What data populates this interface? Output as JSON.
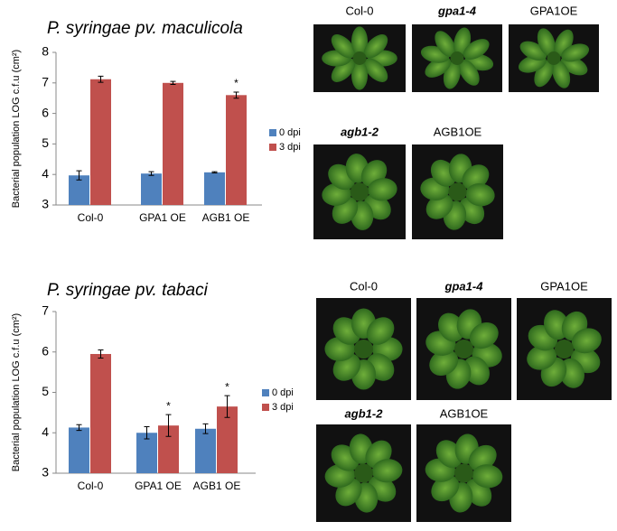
{
  "chart_data": [
    {
      "type": "bar",
      "title": "P. syringae pv. maculicola",
      "ylabel": "Bacterial population LOG c.f.u (cm²)",
      "categories": [
        "Col-0",
        "GPA1 OE",
        "AGB1 OE"
      ],
      "series": [
        {
          "name": "0 dpi",
          "color": "#4f81bd",
          "values": [
            3.97,
            4.03,
            4.07
          ],
          "errors": [
            0.15,
            0.06,
            0.02
          ]
        },
        {
          "name": "3 dpi",
          "color": "#c0504d",
          "values": [
            7.12,
            7.0,
            6.6
          ],
          "errors": [
            0.1,
            0.05,
            0.1
          ]
        }
      ],
      "annotations": [
        {
          "text": "*",
          "series": "3 dpi",
          "category": "AGB1 OE"
        }
      ],
      "ylim": [
        3,
        8
      ],
      "yticks": [
        3,
        4,
        5,
        6,
        7,
        8
      ],
      "grid": false
    },
    {
      "type": "bar",
      "title": "P. syringae pv. tabaci",
      "ylabel": "Bacterial population LOG c.f.u (cm²)",
      "categories": [
        "Col-0",
        "GPA1 OE",
        "AGB1 OE"
      ],
      "series": [
        {
          "name": "0 dpi",
          "color": "#4f81bd",
          "values": [
            4.13,
            4.0,
            4.1
          ],
          "errors": [
            0.07,
            0.15,
            0.12
          ]
        },
        {
          "name": "3 dpi",
          "color": "#c0504d",
          "values": [
            5.95,
            4.18,
            4.65
          ],
          "errors": [
            0.1,
            0.27,
            0.27
          ]
        }
      ],
      "annotations": [
        {
          "text": "*",
          "series": "3 dpi",
          "category": "GPA1 OE"
        },
        {
          "text": "*",
          "series": "3 dpi",
          "category": "AGB1 OE"
        }
      ],
      "ylim": [
        3,
        7
      ],
      "yticks": [
        3,
        4,
        5,
        6,
        7
      ],
      "grid": false
    }
  ],
  "photo_panels": [
    {
      "labels": [
        "Col-0",
        "gpa1-4",
        "GPA1OE",
        "agb1-2",
        "AGB1OE"
      ]
    },
    {
      "labels": [
        "Col-0",
        "gpa1-4",
        "GPA1OE",
        "agb1-2",
        "AGB1OE"
      ]
    }
  ]
}
